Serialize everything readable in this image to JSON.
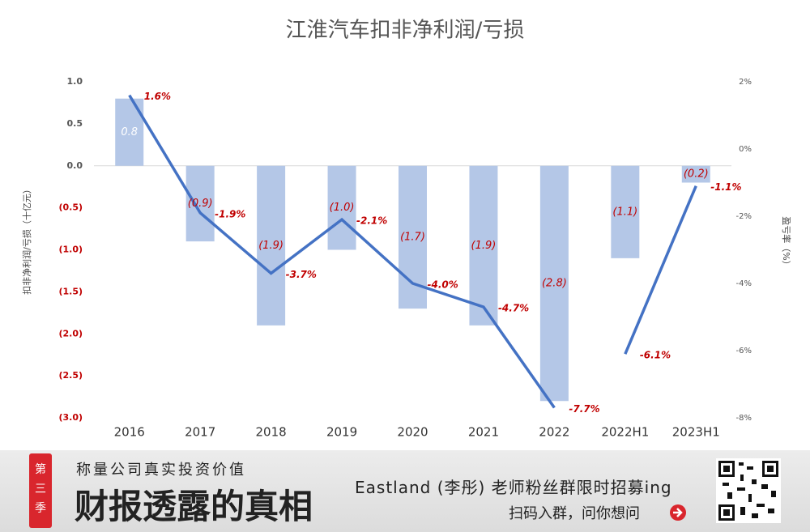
{
  "chart_data": {
    "type": "bar_line",
    "title": "江淮汽车扣非净利润/亏损",
    "y_label": "扣非净利润/亏损（十亿元）",
    "y2_label": "盈亏率（%）",
    "categories": [
      "2016",
      "2017",
      "2018",
      "2019",
      "2020",
      "2021",
      "2022",
      "2022H1",
      "2023H1"
    ],
    "series": [
      {
        "type": "bar",
        "color": "#b4c7e7",
        "values": [
          0.8,
          -0.9,
          -1.9,
          -1.0,
          -1.7,
          -1.9,
          -2.8,
          -1.1,
          -0.2
        ],
        "value_labels": [
          "0.8",
          "(0.9)",
          "(1.9)",
          "(1.0)",
          "(1.7)",
          "(1.9)",
          "(2.8)",
          "(1.1)",
          "(0.2)"
        ]
      },
      {
        "type": "line",
        "axis": "y2",
        "color": "#4472c4",
        "values": [
          1.6,
          -1.9,
          -3.7,
          -2.1,
          -4.0,
          -4.7,
          -7.7,
          null,
          null
        ],
        "value_labels": [
          "1.6%",
          "-1.9%",
          "-3.7%",
          "-2.1%",
          "-4.0%",
          "-4.7%",
          "-7.7%",
          null,
          null
        ]
      },
      {
        "type": "line",
        "axis": "y2",
        "color": "#4472c4",
        "values": [
          null,
          null,
          null,
          null,
          null,
          null,
          null,
          -6.1,
          -1.1
        ],
        "value_labels": [
          null,
          null,
          null,
          null,
          null,
          null,
          null,
          "-6.1%",
          "-1.1%"
        ]
      }
    ],
    "ylim": [
      -3.0,
      1.0
    ],
    "yticks": [
      {
        "value": 1.0,
        "label": "1.0"
      },
      {
        "value": 0.5,
        "label": "0.5"
      },
      {
        "value": 0.0,
        "label": "0.0"
      },
      {
        "value": -0.5,
        "label": "(0.5)"
      },
      {
        "value": -1.0,
        "label": "(1.0)"
      },
      {
        "value": -1.5,
        "label": "(1.5)"
      },
      {
        "value": -2.0,
        "label": "(2.0)"
      },
      {
        "value": -2.5,
        "label": "(2.5)"
      },
      {
        "value": -3.0,
        "label": "(3.0)"
      }
    ],
    "y2lim": [
      -8,
      2
    ],
    "y2ticks": [
      {
        "value": 2,
        "label": "2%"
      },
      {
        "value": 0,
        "label": "0%"
      },
      {
        "value": -2,
        "label": "-2%"
      },
      {
        "value": -4,
        "label": "-4%"
      },
      {
        "value": -6,
        "label": "-6%"
      },
      {
        "value": -8,
        "label": "-8%"
      }
    ],
    "label_color": "#c00000"
  },
  "footer": {
    "tag": "第三季",
    "slogan": "称量公司真实投资价值",
    "brand": "财报透露的真相",
    "promo": "Eastland (李彤) 老师粉丝群限时招募ing",
    "cta": "扫码入群，问你想问"
  }
}
